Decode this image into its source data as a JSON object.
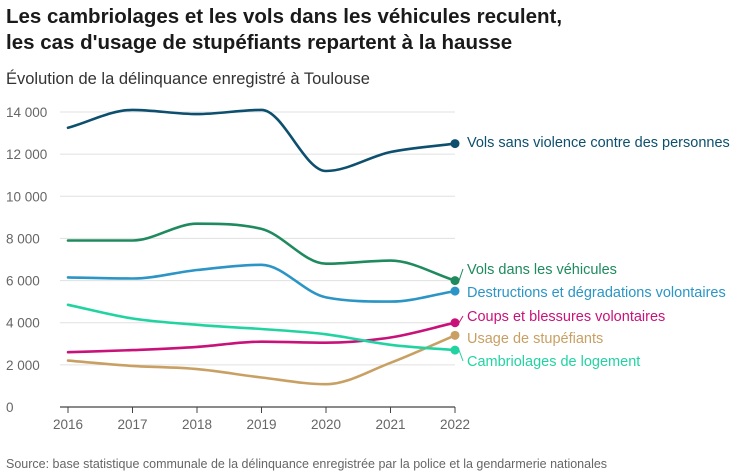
{
  "title_line1": "Les cambriolages et les vols dans les véhicules reculent,",
  "title_line2": "les cas d'usage de stupéfiants repartent à la hausse",
  "subtitle": "Évolution de la délinquance enregistré à Toulouse",
  "source": "Source: base statistique communale de la délinquance enregistrée par la police et la gendarmerie nationales",
  "chart_data": {
    "type": "line",
    "x": [
      2016,
      2017,
      2018,
      2019,
      2020,
      2021,
      2022
    ],
    "ylim": [
      0,
      14000
    ],
    "yticks": [
      0,
      2000,
      4000,
      6000,
      8000,
      10000,
      12000,
      14000
    ],
    "ytick_labels": [
      "0",
      "2 000",
      "4 000",
      "6 000",
      "8 000",
      "10 000",
      "12 000",
      "14 000"
    ],
    "xtick_labels": [
      "2016",
      "2017",
      "2018",
      "2019",
      "2020",
      "2021",
      "2022"
    ],
    "grid": "horizontal",
    "legend": "labels at line ends",
    "series": [
      {
        "name": "Vols sans violence contre des personnes",
        "color": "#0d4f6e",
        "values": [
          13250,
          14100,
          13900,
          14100,
          11200,
          12100,
          12500
        ]
      },
      {
        "name": "Vols dans les véhicules",
        "color": "#1e8a5e",
        "values": [
          7900,
          7900,
          8700,
          8450,
          6800,
          6950,
          6000
        ]
      },
      {
        "name": "Destructions et dégradations volontaires",
        "color": "#2b95c6",
        "values": [
          6150,
          6100,
          6500,
          6750,
          5200,
          5000,
          5500
        ]
      },
      {
        "name": "Coups et blessures volontaires",
        "color": "#c8127a",
        "values": [
          2600,
          2700,
          2850,
          3100,
          3050,
          3300,
          4000
        ]
      },
      {
        "name": "Usage de stupéfiants",
        "color": "#c9a063",
        "values": [
          2200,
          1950,
          1800,
          1400,
          1080,
          2100,
          3400
        ]
      },
      {
        "name": "Cambriolages de logement",
        "color": "#22d3a2",
        "values": [
          4850,
          4200,
          3900,
          3700,
          3450,
          2950,
          2700
        ]
      }
    ]
  }
}
